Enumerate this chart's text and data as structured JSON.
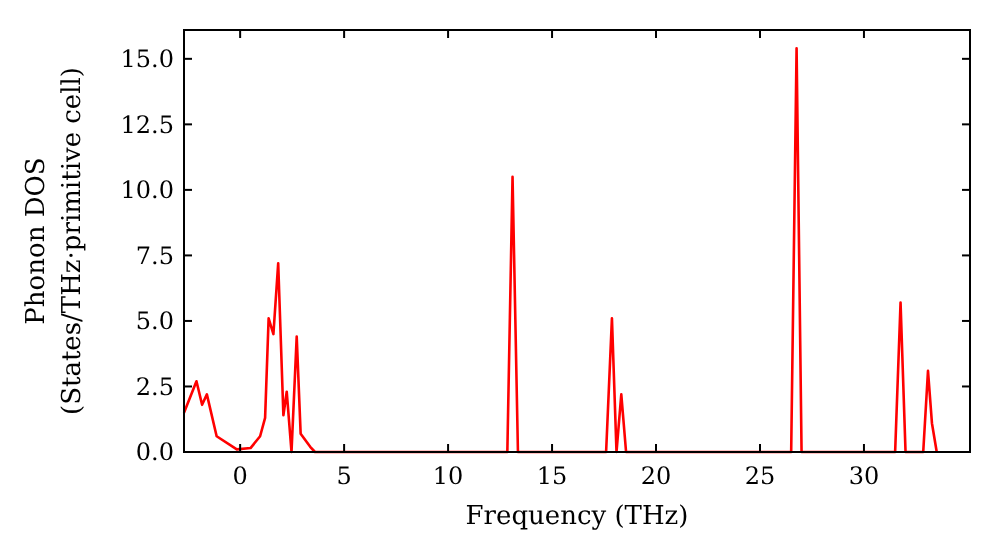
{
  "chart_data": {
    "type": "line",
    "xlabel": "Frequency (THz)",
    "ylabel": "Phonon DOS\n(States/THz·primitive cell)",
    "xlim": [
      -2.7,
      35.1
    ],
    "ylim": [
      0,
      16.1
    ],
    "xticks": [
      0,
      5,
      10,
      15,
      20,
      25,
      30
    ],
    "yticks": [
      {
        "value": 0,
        "label": "0.0"
      },
      {
        "value": 2.5,
        "label": "2.5"
      },
      {
        "value": 5,
        "label": "5.0"
      },
      {
        "value": 7.5,
        "label": "7.5"
      },
      {
        "value": 10,
        "label": "10.0"
      },
      {
        "value": 12.5,
        "label": "12.5"
      },
      {
        "value": 15,
        "label": "15.0"
      }
    ],
    "grid": false,
    "marker": "none",
    "line_style": "solid",
    "series": [
      {
        "color": "#ff0000",
        "x": [
          -2.7,
          -2.1,
          -1.83,
          -1.6,
          -1.13,
          -0.16,
          0.5,
          0.96,
          1.2,
          1.37,
          1.6,
          1.83,
          2.08,
          2.24,
          2.47,
          2.72,
          2.91,
          3.37,
          3.6,
          12.85,
          13.1,
          13.36,
          17.6,
          17.88,
          18.1,
          18.33,
          18.56,
          26.5,
          26.76,
          27.0,
          31.5,
          31.76,
          32.0,
          32.85,
          33.08,
          33.27,
          33.5
        ],
        "values": [
          1.5,
          2.7,
          1.8,
          2.2,
          0.6,
          0.1,
          0.15,
          0.6,
          1.3,
          5.1,
          4.5,
          7.2,
          1.4,
          2.3,
          0,
          4.4,
          0.7,
          0.2,
          0,
          0,
          10.5,
          0,
          0,
          5.1,
          0,
          2.2,
          0,
          0,
          15.4,
          0,
          0,
          5.7,
          0,
          0,
          3.1,
          1.1,
          0
        ]
      }
    ]
  }
}
